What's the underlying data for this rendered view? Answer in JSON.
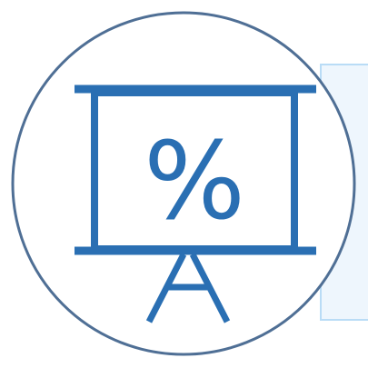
{
  "icon": {
    "name": "presentation-board-icon",
    "symbol": "%"
  },
  "colors": {
    "stroke": "#2a6fb3",
    "circle_stroke": "#4f6f95",
    "panel": "#eef6fd",
    "panel_border": "#b9dcf6",
    "background": "#ffffff"
  }
}
